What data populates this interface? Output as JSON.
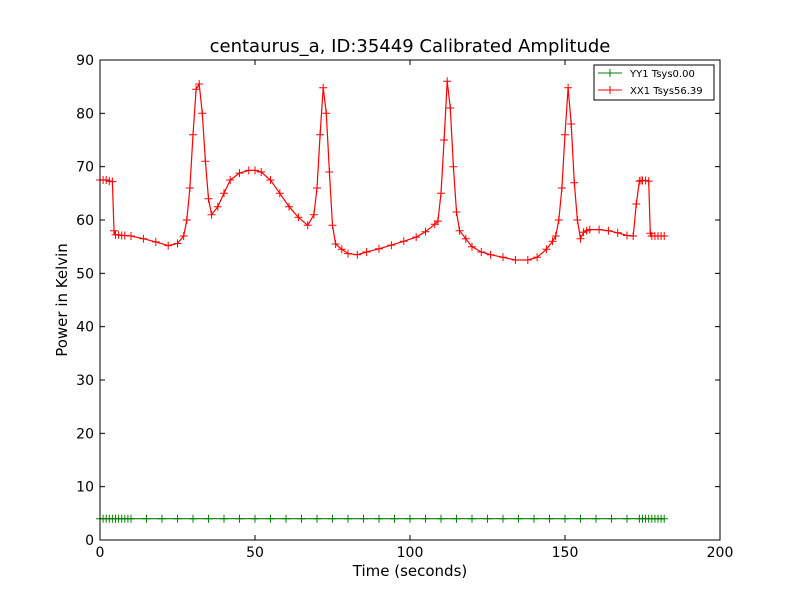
{
  "chart_data": {
    "type": "line",
    "title": "centaurus_a, ID:35449 Calibrated Amplitude",
    "xlabel": "Time (seconds)",
    "ylabel": "Power in Kelvin",
    "xlim": [
      0,
      200
    ],
    "ylim": [
      0,
      90
    ],
    "xticks": [
      "0",
      "50",
      "100",
      "150",
      "200"
    ],
    "yticks": [
      "0",
      "10",
      "20",
      "30",
      "40",
      "50",
      "60",
      "70",
      "80",
      "90"
    ],
    "grid": false,
    "legend_position": "top-right",
    "marker": "+",
    "series": [
      {
        "name": "YY1 Tsys0.00",
        "color": "#008000",
        "x": [
          0,
          1,
          2,
          3,
          4,
          5,
          6,
          7,
          8,
          9,
          10,
          15,
          20,
          25,
          30,
          35,
          40,
          45,
          50,
          55,
          60,
          65,
          70,
          75,
          80,
          85,
          90,
          95,
          100,
          105,
          110,
          115,
          120,
          125,
          130,
          135,
          140,
          145,
          150,
          155,
          160,
          165,
          170,
          174,
          175,
          176,
          177,
          178,
          179,
          180,
          181,
          182
        ],
        "y": [
          4,
          4,
          4,
          4,
          4,
          4,
          4,
          4,
          4,
          4,
          4,
          4,
          4,
          4,
          4,
          4,
          4,
          4,
          4,
          4,
          4,
          4,
          4,
          4,
          4,
          4,
          4,
          4,
          4,
          4,
          4,
          4,
          4,
          4,
          4,
          4,
          4,
          4,
          4,
          4,
          4,
          4,
          4,
          4,
          4,
          4,
          4,
          4,
          4,
          4,
          4,
          4
        ]
      },
      {
        "name": "XX1 Tsys56.39",
        "color": "#ff0000",
        "x": [
          0,
          1,
          2,
          3,
          4,
          4.5,
          5,
          6,
          7,
          8,
          10,
          14,
          18,
          22,
          25,
          27,
          28,
          29,
          30,
          31,
          32,
          33,
          34,
          35,
          36,
          38,
          40,
          42,
          45,
          48,
          50,
          52,
          55,
          58,
          61,
          64,
          67,
          69,
          70,
          71,
          72,
          73,
          74,
          75,
          76,
          78,
          80,
          83,
          86,
          90,
          94,
          98,
          102,
          105,
          108,
          109,
          110,
          111,
          112,
          113,
          114,
          115,
          116,
          118,
          120,
          123,
          126,
          130,
          134,
          138,
          141,
          144,
          146,
          147,
          148,
          149,
          150,
          151,
          152,
          153,
          154,
          155,
          156,
          157,
          158,
          161,
          164,
          167,
          170,
          172,
          173,
          174,
          174.5,
          175,
          176,
          177,
          177.5,
          178,
          179,
          180,
          181,
          182
        ],
        "y": [
          67.5,
          67.5,
          67.5,
          67.3,
          67.2,
          58,
          57.2,
          57.2,
          57.1,
          57.1,
          57.0,
          56.5,
          55.9,
          55.2,
          55.6,
          57,
          60,
          66,
          76,
          84.5,
          85.5,
          80,
          71,
          64,
          61.0,
          62.5,
          65,
          67.5,
          68.8,
          69.3,
          69.3,
          69,
          67.5,
          65,
          62.5,
          60.5,
          59.0,
          61,
          66,
          76,
          84.8,
          80,
          69,
          59,
          55.5,
          54.5,
          53.7,
          53.5,
          54.0,
          54.6,
          55.3,
          56,
          56.8,
          57.8,
          59.2,
          59.8,
          65,
          75,
          86,
          81,
          70,
          61.5,
          58,
          56.5,
          55,
          54,
          53.5,
          53.0,
          52.5,
          52.5,
          53.0,
          54.5,
          56,
          57,
          60,
          66,
          76,
          84.8,
          78,
          67,
          60,
          56.5,
          57.7,
          58,
          58.2,
          58.2,
          58.0,
          57.6,
          57.1,
          57.0,
          63,
          67.3,
          67.4,
          67.4,
          67.4,
          67.3,
          57.5,
          57.0,
          57.0,
          57.0,
          57.0,
          57.0
        ]
      }
    ]
  }
}
